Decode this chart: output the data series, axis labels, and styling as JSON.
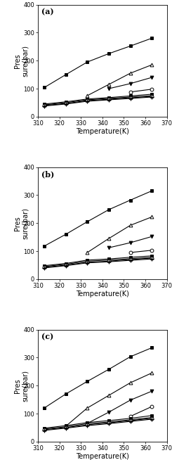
{
  "subplots": [
    {
      "label": "(a)",
      "series": [
        {
          "x": [
            313,
            323,
            333,
            343,
            353,
            363
          ],
          "y": [
            104,
            150,
            195,
            225,
            252,
            280
          ],
          "marker": "s",
          "filled": true,
          "linestyle": "-"
        },
        {
          "x": [
            333,
            343,
            353,
            363
          ],
          "y": [
            75,
            115,
            155,
            185
          ],
          "marker": "^",
          "filled": false,
          "linestyle": "-"
        },
        {
          "x": [
            343,
            353,
            363
          ],
          "y": [
            100,
            118,
            140
          ],
          "marker": "v",
          "filled": true,
          "linestyle": "-"
        },
        {
          "x": [
            353,
            363
          ],
          "y": [
            88,
            98
          ],
          "marker": "o",
          "filled": false,
          "linestyle": "-"
        },
        {
          "x": [
            313,
            323,
            333,
            343,
            353,
            363
          ],
          "y": [
            45,
            53,
            63,
            68,
            74,
            80
          ],
          "marker": "s",
          "filled": true,
          "linestyle": "-"
        },
        {
          "x": [
            313,
            323,
            333,
            343,
            353,
            363
          ],
          "y": [
            42,
            50,
            60,
            65,
            70,
            75
          ],
          "marker": "^",
          "filled": true,
          "linestyle": "-"
        },
        {
          "x": [
            313,
            323,
            333,
            343,
            353,
            363
          ],
          "y": [
            40,
            47,
            57,
            62,
            67,
            72
          ],
          "marker": "o",
          "filled": false,
          "linestyle": "-"
        },
        {
          "x": [
            313,
            323,
            333,
            343,
            353,
            363
          ],
          "y": [
            38,
            45,
            55,
            60,
            65,
            70
          ],
          "marker": "+",
          "filled": false,
          "linestyle": "-"
        }
      ]
    },
    {
      "label": "(b)",
      "series": [
        {
          "x": [
            313,
            323,
            333,
            343,
            353,
            363
          ],
          "y": [
            118,
            160,
            205,
            248,
            282,
            315
          ],
          "marker": "s",
          "filled": true,
          "linestyle": "-"
        },
        {
          "x": [
            333,
            343,
            353,
            363
          ],
          "y": [
            95,
            145,
            192,
            222
          ],
          "marker": "^",
          "filled": false,
          "linestyle": "-"
        },
        {
          "x": [
            343,
            353,
            363
          ],
          "y": [
            112,
            130,
            152
          ],
          "marker": "v",
          "filled": true,
          "linestyle": "-"
        },
        {
          "x": [
            353,
            363
          ],
          "y": [
            95,
            103
          ],
          "marker": "o",
          "filled": false,
          "linestyle": "-"
        },
        {
          "x": [
            313,
            323,
            333,
            343,
            353,
            363
          ],
          "y": [
            48,
            56,
            68,
            72,
            78,
            83
          ],
          "marker": "s",
          "filled": true,
          "linestyle": "-"
        },
        {
          "x": [
            313,
            323,
            333,
            343,
            353,
            363
          ],
          "y": [
            45,
            53,
            64,
            68,
            73,
            78
          ],
          "marker": "^",
          "filled": true,
          "linestyle": "-"
        },
        {
          "x": [
            313,
            323,
            333,
            343,
            353,
            363
          ],
          "y": [
            42,
            50,
            60,
            64,
            70,
            75
          ],
          "marker": "o",
          "filled": false,
          "linestyle": "-"
        },
        {
          "x": [
            313,
            323,
            333,
            343,
            353,
            363
          ],
          "y": [
            40,
            48,
            58,
            62,
            67,
            72
          ],
          "marker": "+",
          "filled": false,
          "linestyle": "-"
        }
      ]
    },
    {
      "label": "(c)",
      "series": [
        {
          "x": [
            313,
            323,
            333,
            343,
            353,
            363
          ],
          "y": [
            120,
            170,
            215,
            258,
            303,
            335
          ],
          "marker": "s",
          "filled": true,
          "linestyle": "-"
        },
        {
          "x": [
            323,
            333,
            343,
            353,
            363
          ],
          "y": [
            55,
            120,
            165,
            210,
            245
          ],
          "marker": "^",
          "filled": false,
          "linestyle": "-"
        },
        {
          "x": [
            333,
            343,
            353,
            363
          ],
          "y": [
            65,
            105,
            148,
            180
          ],
          "marker": "v",
          "filled": true,
          "linestyle": "-"
        },
        {
          "x": [
            353,
            363
          ],
          "y": [
            90,
            125
          ],
          "marker": "o",
          "filled": false,
          "linestyle": "-"
        },
        {
          "x": [
            313,
            323,
            333,
            343,
            353,
            363
          ],
          "y": [
            48,
            57,
            68,
            75,
            83,
            93
          ],
          "marker": "s",
          "filled": true,
          "linestyle": "-"
        },
        {
          "x": [
            313,
            323,
            333,
            343,
            353,
            363
          ],
          "y": [
            45,
            53,
            64,
            70,
            78,
            86
          ],
          "marker": "^",
          "filled": true,
          "linestyle": "-"
        },
        {
          "x": [
            313,
            323,
            333,
            343,
            353,
            363
          ],
          "y": [
            43,
            50,
            60,
            67,
            75,
            83
          ],
          "marker": "o",
          "filled": false,
          "linestyle": "-"
        },
        {
          "x": [
            313,
            323,
            333,
            343,
            353,
            363
          ],
          "y": [
            40,
            48,
            57,
            64,
            72,
            80
          ],
          "marker": "+",
          "filled": false,
          "linestyle": "-"
        }
      ]
    }
  ],
  "xlim": [
    310,
    370
  ],
  "ylim": [
    0,
    400
  ],
  "xticks": [
    310,
    320,
    330,
    340,
    350,
    360,
    370
  ],
  "yticks": [
    0,
    100,
    200,
    300,
    400
  ],
  "xlabel": "Temperature(K)",
  "ylabel": "Pres\nsure(bar)",
  "fig_width": 2.45,
  "fig_height": 6.54,
  "dpi": 100,
  "tick_labelsize": 6,
  "axis_labelsize": 7,
  "label_fontsize": 8,
  "marker_size": 3.5,
  "line_width": 0.8
}
